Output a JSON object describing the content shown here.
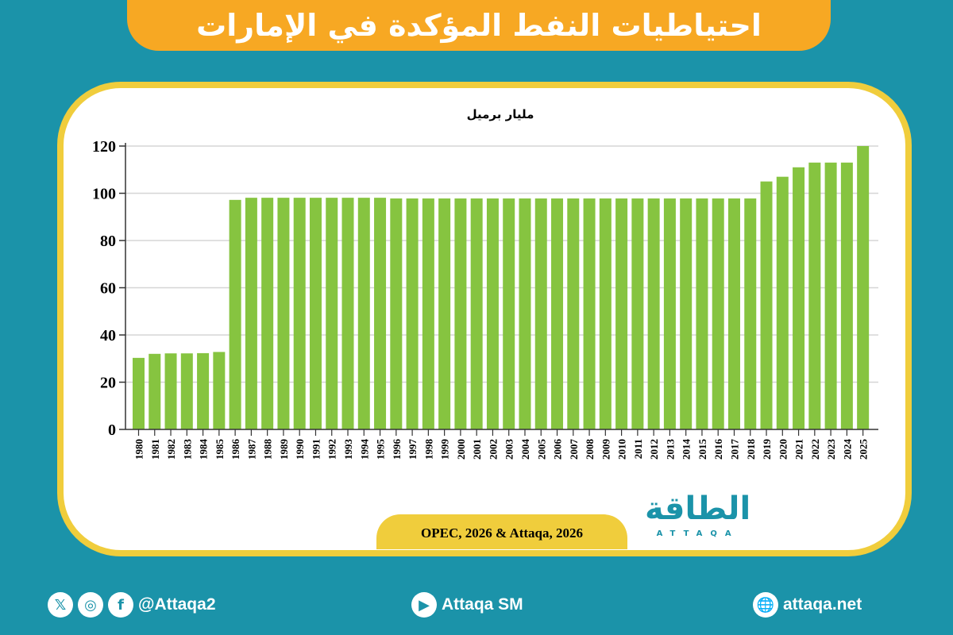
{
  "title": "احتياطيات النفط المؤكدة في الإمارات",
  "source": "OPEC, 2026 & Attaqa, 2026",
  "logo": {
    "arabic": "الطاقة",
    "latin": "ATTAQA"
  },
  "footer": {
    "social_handle": "@Attaqa2",
    "youtube": "Attaqa SM",
    "website": "attaqa.net"
  },
  "colors": {
    "bar": "#86c440",
    "background": "#1b93a9",
    "banner": "#f7a823",
    "frame": "#f0cd3c"
  },
  "chart_data": {
    "type": "bar",
    "ylabel": "مليار برميل",
    "ylim": [
      0,
      120
    ],
    "yticks": [
      0,
      20,
      40,
      60,
      80,
      100,
      120
    ],
    "grid": true,
    "categories": [
      "1980",
      "1981",
      "1982",
      "1983",
      "1984",
      "1985",
      "1986",
      "1987",
      "1988",
      "1989",
      "1990",
      "1991",
      "1992",
      "1993",
      "1994",
      "1995",
      "1996",
      "1997",
      "1998",
      "1999",
      "2000",
      "2001",
      "2002",
      "2003",
      "2004",
      "2005",
      "2006",
      "2007",
      "2008",
      "2009",
      "2010",
      "2011",
      "2012",
      "2013",
      "2014",
      "2015",
      "2016",
      "2017",
      "2018",
      "2019",
      "2020",
      "2021",
      "2022",
      "2023",
      "2024",
      "2025"
    ],
    "values": [
      30.3,
      32,
      32.2,
      32.2,
      32.3,
      32.8,
      97.2,
      98.1,
      98.1,
      98.1,
      98.1,
      98.1,
      98.1,
      98.1,
      98.1,
      98.1,
      97.8,
      97.8,
      97.8,
      97.8,
      97.8,
      97.8,
      97.8,
      97.8,
      97.8,
      97.8,
      97.8,
      97.8,
      97.8,
      97.8,
      97.8,
      97.8,
      97.8,
      97.8,
      97.8,
      97.8,
      97.8,
      97.8,
      97.8,
      105,
      107,
      111,
      113,
      113,
      113,
      120
    ]
  }
}
